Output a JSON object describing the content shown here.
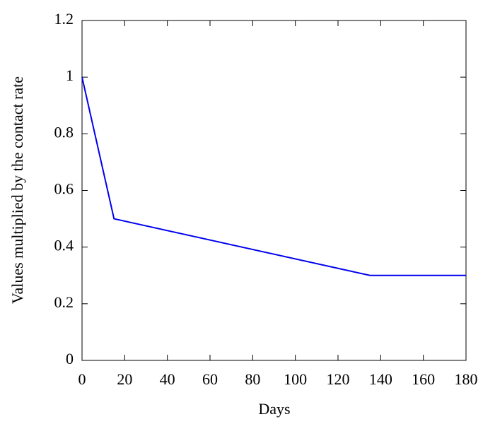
{
  "chart_data": {
    "type": "line",
    "x_label": "Days",
    "y_label": "Values multiplied by the contact rate",
    "series": [
      {
        "color": "#0000ee",
        "x": [
          0,
          15,
          135,
          180
        ],
        "values": [
          1,
          0.5,
          0.3,
          0.3
        ]
      }
    ],
    "xlim": [
      0,
      180
    ],
    "xticks": [
      0,
      20,
      40,
      60,
      80,
      100,
      120,
      140,
      160,
      180
    ],
    "ylim": [
      0,
      1.2
    ],
    "yticks": [
      0,
      0.2,
      0.4,
      0.6,
      0.8,
      1,
      1.2
    ]
  }
}
